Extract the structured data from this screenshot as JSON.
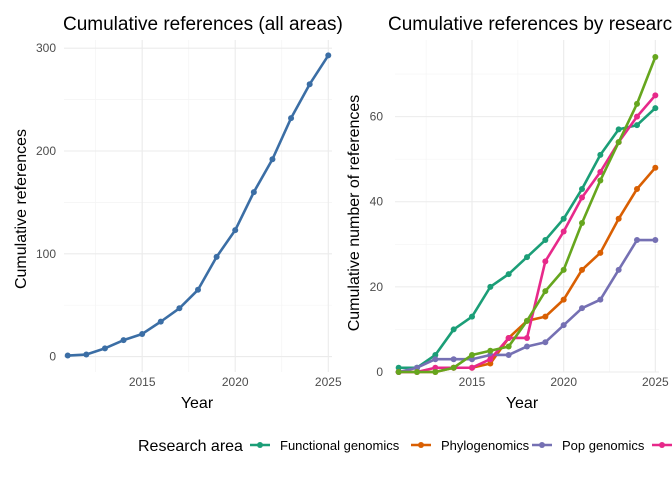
{
  "chart_data": [
    {
      "type": "line",
      "title": "Cumulative references (all areas)",
      "xlabel": "Year",
      "ylabel": "Cumulative references",
      "xlim": [
        2010.8,
        2025.2
      ],
      "ylim": [
        -15,
        308
      ],
      "xticks": [
        2015,
        2020,
        2025
      ],
      "yticks": [
        0,
        100,
        200,
        300
      ],
      "grid": true,
      "series": [
        {
          "color": "#3b6ea5",
          "x": [
            2011,
            2012,
            2013,
            2014,
            2015,
            2016,
            2017,
            2018,
            2019,
            2020,
            2021,
            2022,
            2023,
            2024,
            2025
          ],
          "values": [
            1,
            2,
            8,
            16,
            22,
            34,
            47,
            65,
            97,
            123,
            160,
            192,
            232,
            265,
            293
          ]
        }
      ]
    },
    {
      "type": "line",
      "title": "Cumulative references by research area",
      "xlabel": "Year",
      "ylabel": "Cumulative number of references",
      "xlim": [
        2010.8,
        2025.2
      ],
      "ylim": [
        0,
        78
      ],
      "xticks": [
        2015,
        2020,
        2025
      ],
      "yticks": [
        0,
        20,
        40,
        60
      ],
      "grid": true,
      "legend": {
        "title": "Research area",
        "position": "bottom"
      },
      "x": [
        2011,
        2012,
        2013,
        2014,
        2015,
        2016,
        2017,
        2018,
        2019,
        2020,
        2021,
        2022,
        2023,
        2024,
        2025
      ],
      "series": [
        {
          "name": "Functional genomics",
          "color": "#1b9e77",
          "values": [
            1,
            1,
            4,
            10,
            13,
            20,
            23,
            27,
            31,
            36,
            43,
            51,
            57,
            58,
            62
          ]
        },
        {
          "name": "Phylogenomics",
          "color": "#d95f02",
          "values": [
            0,
            0,
            0,
            1,
            1,
            2,
            8,
            12,
            13,
            17,
            24,
            28,
            36,
            43,
            48
          ]
        },
        {
          "name": "Pop genomics",
          "color": "#7570b3",
          "values": [
            0,
            1,
            3,
            3,
            3,
            4,
            4,
            6,
            7,
            11,
            15,
            17,
            24,
            31,
            31
          ]
        },
        {
          "name": "",
          "color": "#e7298a",
          "values": [
            0,
            0,
            1,
            1,
            1,
            3,
            8,
            8,
            26,
            33,
            41,
            47,
            54,
            60,
            65
          ]
        },
        {
          "name": "",
          "color": "#66a61e",
          "values": [
            0,
            0,
            0,
            1,
            4,
            5,
            6,
            12,
            19,
            24,
            35,
            45,
            54,
            63,
            74
          ]
        }
      ]
    }
  ]
}
